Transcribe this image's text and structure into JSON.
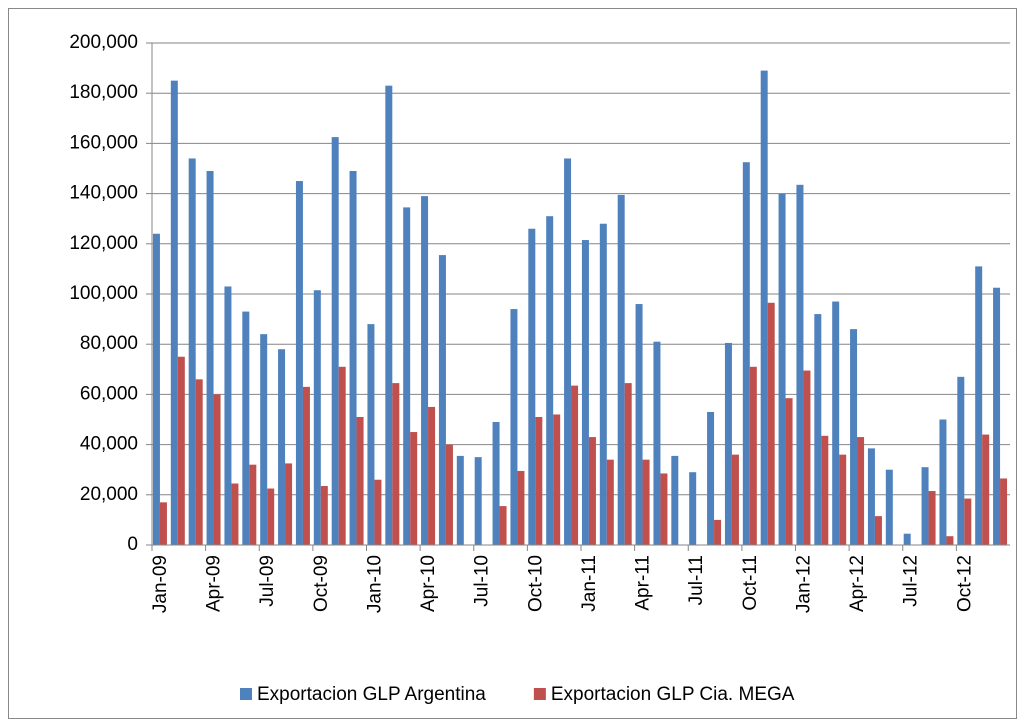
{
  "chart_data": {
    "type": "bar",
    "categories": [
      "Jan-09",
      null,
      null,
      "Apr-09",
      null,
      null,
      "Jul-09",
      null,
      null,
      "Oct-09",
      null,
      null,
      "Jan-10",
      null,
      null,
      "Apr-10",
      null,
      null,
      "Jul-10",
      null,
      null,
      "Oct-10",
      null,
      null,
      "Jan-11",
      null,
      null,
      "Apr-11",
      null,
      null,
      "Jul-11",
      null,
      null,
      "Oct-11",
      null,
      null,
      "Jan-12",
      null,
      null,
      "Apr-12",
      null,
      null,
      "Jul-12",
      null,
      null,
      "Oct-12",
      null,
      null
    ],
    "series": [
      {
        "name": "Exportacion GLP Argentina",
        "color": "#4f81bd",
        "values": [
          124000,
          185000,
          154000,
          149000,
          103000,
          93000,
          84000,
          78000,
          145000,
          101500,
          162500,
          149000,
          88000,
          183000,
          134500,
          139000,
          115500,
          35500,
          35000,
          49000,
          94000,
          126000,
          131000,
          154000,
          121500,
          128000,
          139500,
          96000,
          81000,
          35500,
          29000,
          53000,
          80500,
          152500,
          189000,
          140000,
          143500,
          92000,
          97000,
          86000,
          38500,
          30000,
          4500,
          31000,
          50000,
          67000,
          111000,
          102500
        ]
      },
      {
        "name": "Exportacion GLP Cia. MEGA",
        "color": "#c0504d",
        "values": [
          17000,
          75000,
          66000,
          60000,
          24500,
          32000,
          22500,
          32500,
          63000,
          23500,
          71000,
          51000,
          26000,
          64500,
          45000,
          55000,
          40000,
          0,
          0,
          15500,
          29500,
          51000,
          52000,
          63500,
          43000,
          34000,
          64500,
          34000,
          28500,
          0,
          0,
          10000,
          36000,
          71000,
          96500,
          58500,
          69500,
          43500,
          36000,
          43000,
          11500,
          0,
          0,
          21500,
          3500,
          18500,
          44000,
          26500
        ]
      }
    ],
    "ylim": [
      0,
      200000
    ],
    "yticks": [
      0,
      {
        "value": 20000,
        "label": "20,000"
      },
      {
        "value": 40000,
        "label": "40,000"
      },
      {
        "value": 60000,
        "label": "60,000"
      },
      {
        "value": 80000,
        "label": "80,000"
      },
      {
        "value": 100000,
        "label": "100,000"
      },
      {
        "value": 120000,
        "label": "120,000"
      },
      {
        "value": 140000,
        "label": "140,000"
      },
      {
        "value": 160000,
        "label": "160,000"
      },
      {
        "value": 180000,
        "label": "180,000"
      },
      {
        "value": 200000,
        "label": "200,000"
      }
    ],
    "grid": true,
    "legend": "bottom"
  }
}
